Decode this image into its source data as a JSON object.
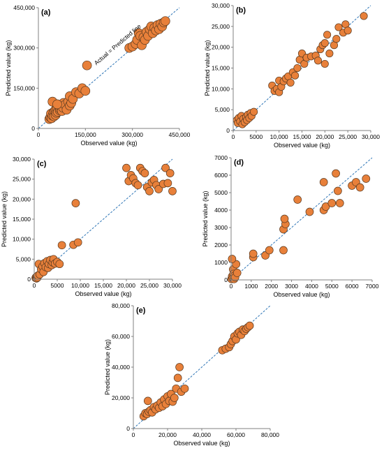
{
  "colors": {
    "point_fill": "#E8803A",
    "point_stroke": "#5A3A20",
    "identity_line": "#2E75B6",
    "axis": "#808080",
    "text": "#000000"
  },
  "chart_data": [
    {
      "id": "a",
      "type": "scatter",
      "panel_label": "(a)",
      "xlabel": "Observed value (kg)",
      "ylabel": "Predicted value (kg)",
      "xlim": [
        0,
        450000
      ],
      "ylim": [
        0,
        450000
      ],
      "xticks": [
        0,
        150000,
        300000,
        450000
      ],
      "yticks": [
        0,
        150000,
        300000,
        450000
      ],
      "xtick_labels": [
        "0",
        "150,000",
        "300,000",
        "450,000"
      ],
      "ytick_labels": [
        "0",
        "150,000",
        "300,000",
        "450,000"
      ],
      "grid": false,
      "reference_line": "Actual = Predicted line",
      "points": [
        [
          35000,
          35000
        ],
        [
          38000,
          42000
        ],
        [
          40000,
          55000
        ],
        [
          42000,
          38000
        ],
        [
          45000,
          48000
        ],
        [
          48000,
          60000
        ],
        [
          50000,
          45000
        ],
        [
          52000,
          65000
        ],
        [
          55000,
          50000
        ],
        [
          55000,
          70000
        ],
        [
          58000,
          58000
        ],
        [
          60000,
          75000
        ],
        [
          62000,
          62000
        ],
        [
          65000,
          85000
        ],
        [
          68000,
          68000
        ],
        [
          70000,
          72000
        ],
        [
          72000,
          80000
        ],
        [
          75000,
          65000
        ],
        [
          78000,
          78000
        ],
        [
          80000,
          95000
        ],
        [
          85000,
          88000
        ],
        [
          90000,
          70000
        ],
        [
          95000,
          100000
        ],
        [
          100000,
          85000
        ],
        [
          100000,
          120000
        ],
        [
          105000,
          95000
        ],
        [
          110000,
          110000
        ],
        [
          120000,
          135000
        ],
        [
          130000,
          130000
        ],
        [
          140000,
          150000
        ],
        [
          150000,
          140000
        ],
        [
          155000,
          235000
        ],
        [
          45000,
          100000
        ],
        [
          60000,
          90000
        ],
        [
          290000,
          300000
        ],
        [
          300000,
          305000
        ],
        [
          310000,
          315000
        ],
        [
          315000,
          330000
        ],
        [
          320000,
          355000
        ],
        [
          325000,
          345000
        ],
        [
          330000,
          310000
        ],
        [
          335000,
          340000
        ],
        [
          340000,
          330000
        ],
        [
          345000,
          360000
        ],
        [
          350000,
          345000
        ],
        [
          355000,
          370000
        ],
        [
          360000,
          380000
        ],
        [
          365000,
          355000
        ],
        [
          370000,
          375000
        ],
        [
          375000,
          365000
        ],
        [
          380000,
          385000
        ],
        [
          385000,
          370000
        ],
        [
          390000,
          390000
        ],
        [
          395000,
          380000
        ],
        [
          400000,
          395000
        ],
        [
          405000,
          400000
        ]
      ]
    },
    {
      "id": "b",
      "type": "scatter",
      "panel_label": "(b)",
      "xlabel": "Observed value (kg)",
      "ylabel": "Predicted value (kg)",
      "xlim": [
        0,
        30000
      ],
      "ylim": [
        0,
        30000
      ],
      "xticks": [
        0,
        5000,
        10000,
        15000,
        20000,
        25000,
        30000
      ],
      "yticks": [
        0,
        5000,
        10000,
        15000,
        20000,
        25000,
        30000
      ],
      "xtick_labels": [
        "0",
        "5000",
        "10,000",
        "15,000",
        "20,000",
        "25,000",
        "30,000"
      ],
      "ytick_labels": [
        "0",
        "5,000",
        "10,000",
        "15,000",
        "20,000",
        "25,000",
        "30,000"
      ],
      "grid": false,
      "points": [
        [
          800,
          2500
        ],
        [
          1000,
          1800
        ],
        [
          1200,
          3000
        ],
        [
          1500,
          2200
        ],
        [
          1800,
          3500
        ],
        [
          2000,
          1500
        ],
        [
          2200,
          2800
        ],
        [
          2500,
          2000
        ],
        [
          2800,
          3200
        ],
        [
          3000,
          2500
        ],
        [
          3200,
          3800
        ],
        [
          3500,
          3000
        ],
        [
          3800,
          4200
        ],
        [
          4000,
          3500
        ],
        [
          4500,
          4500
        ],
        [
          8500,
          10800
        ],
        [
          9000,
          9500
        ],
        [
          9500,
          10000
        ],
        [
          10000,
          9200
        ],
        [
          10000,
          12000
        ],
        [
          10500,
          10500
        ],
        [
          11000,
          11800
        ],
        [
          11500,
          12500
        ],
        [
          12000,
          13000
        ],
        [
          12500,
          11500
        ],
        [
          13000,
          14000
        ],
        [
          13500,
          13200
        ],
        [
          14000,
          15000
        ],
        [
          14500,
          17000
        ],
        [
          15000,
          18500
        ],
        [
          15500,
          16000
        ],
        [
          16000,
          17500
        ],
        [
          17000,
          17800
        ],
        [
          18000,
          18000
        ],
        [
          18500,
          16800
        ],
        [
          19000,
          19500
        ],
        [
          19500,
          20500
        ],
        [
          20000,
          21000
        ],
        [
          20000,
          16000
        ],
        [
          20500,
          23000
        ],
        [
          21000,
          18500
        ],
        [
          22000,
          20500
        ],
        [
          22500,
          22000
        ],
        [
          23000,
          24800
        ],
        [
          24000,
          23500
        ],
        [
          24500,
          25500
        ],
        [
          25000,
          24000
        ],
        [
          28500,
          27500
        ]
      ]
    },
    {
      "id": "c",
      "type": "scatter",
      "panel_label": "(c)",
      "xlabel": "Observed value (kg)",
      "ylabel": "Predicted value (kg)",
      "xlim": [
        0,
        30000
      ],
      "ylim": [
        0,
        30000
      ],
      "xticks": [
        0,
        5000,
        10000,
        15000,
        20000,
        25000,
        30000
      ],
      "yticks": [
        0,
        5000,
        10000,
        15000,
        20000,
        25000,
        30000
      ],
      "xtick_labels": [
        "0",
        "5000",
        "10,000",
        "15,000",
        "20,000",
        "25,000",
        "30,000"
      ],
      "ytick_labels": [
        "0",
        "5,000",
        "10,000",
        "15,000",
        "20,000",
        "25,000",
        "30,000"
      ],
      "grid": false,
      "points": [
        [
          300,
          300
        ],
        [
          400,
          500
        ],
        [
          500,
          200
        ],
        [
          600,
          700
        ],
        [
          700,
          400
        ],
        [
          800,
          900
        ],
        [
          1000,
          3800
        ],
        [
          1200,
          1200
        ],
        [
          1500,
          2500
        ],
        [
          1800,
          3200
        ],
        [
          2000,
          1800
        ],
        [
          2200,
          4000
        ],
        [
          2500,
          3000
        ],
        [
          2800,
          4500
        ],
        [
          3000,
          2800
        ],
        [
          3200,
          3800
        ],
        [
          3500,
          4800
        ],
        [
          3800,
          3500
        ],
        [
          4000,
          4200
        ],
        [
          4200,
          5000
        ],
        [
          4500,
          3900
        ],
        [
          5000,
          4300
        ],
        [
          5500,
          3800
        ],
        [
          6000,
          8500
        ],
        [
          8500,
          8600
        ],
        [
          9000,
          19000
        ],
        [
          9500,
          9200
        ],
        [
          20000,
          27800
        ],
        [
          20500,
          24500
        ],
        [
          21000,
          26000
        ],
        [
          21500,
          25200
        ],
        [
          22000,
          24000
        ],
        [
          22500,
          23500
        ],
        [
          23000,
          27800
        ],
        [
          23500,
          27000
        ],
        [
          24000,
          26500
        ],
        [
          24500,
          23000
        ],
        [
          25000,
          22000
        ],
        [
          25500,
          24200
        ],
        [
          26000,
          24800
        ],
        [
          26500,
          23500
        ],
        [
          27000,
          22500
        ],
        [
          28000,
          23800
        ],
        [
          28500,
          27800
        ],
        [
          29000,
          24000
        ],
        [
          29500,
          26500
        ],
        [
          30000,
          22000
        ]
      ]
    },
    {
      "id": "d",
      "type": "scatter",
      "panel_label": "(d)",
      "xlabel": "Observed value (kg)",
      "ylabel": "Predicted value (kg)",
      "xlim": [
        0,
        7000
      ],
      "ylim": [
        0,
        7000
      ],
      "xticks": [
        0,
        1000,
        2000,
        3000,
        4000,
        5000,
        6000,
        7000
      ],
      "yticks": [
        0,
        1000,
        2000,
        3000,
        4000,
        5000,
        6000,
        7000
      ],
      "xtick_labels": [
        "0",
        "1000",
        "2000",
        "3000",
        "4000",
        "5000",
        "6000",
        "7000"
      ],
      "ytick_labels": [
        "0",
        "1000",
        "2000",
        "3000",
        "4000",
        "5000",
        "6000",
        "7000"
      ],
      "grid": false,
      "points": [
        [
          20,
          50
        ],
        [
          50,
          200
        ],
        [
          80,
          100
        ],
        [
          100,
          600
        ],
        [
          120,
          350
        ],
        [
          150,
          50
        ],
        [
          180,
          250
        ],
        [
          200,
          150
        ],
        [
          250,
          900
        ],
        [
          300,
          400
        ],
        [
          50,
          1200
        ],
        [
          1100,
          1300
        ],
        [
          1100,
          1500
        ],
        [
          1700,
          1400
        ],
        [
          1900,
          1700
        ],
        [
          2600,
          1700
        ],
        [
          2600,
          2900
        ],
        [
          2700,
          3200
        ],
        [
          2650,
          3500
        ],
        [
          3300,
          4600
        ],
        [
          3900,
          3900
        ],
        [
          4600,
          4000
        ],
        [
          4700,
          4200
        ],
        [
          4600,
          5600
        ],
        [
          5000,
          4400
        ],
        [
          5200,
          6100
        ],
        [
          5300,
          5100
        ],
        [
          5400,
          4400
        ],
        [
          6000,
          5400
        ],
        [
          6200,
          5600
        ],
        [
          6400,
          5300
        ],
        [
          6700,
          5800
        ]
      ]
    },
    {
      "id": "e",
      "type": "scatter",
      "panel_label": "(e)",
      "xlabel": "Observed value (kg)",
      "ylabel": "Predicted value (kg)",
      "xlim": [
        0,
        80000
      ],
      "ylim": [
        0,
        80000
      ],
      "xticks": [
        0,
        20000,
        40000,
        60000,
        80000
      ],
      "yticks": [
        0,
        20000,
        40000,
        60000,
        80000
      ],
      "xtick_labels": [
        "0",
        "20,000",
        "40,000",
        "60,000",
        "80,000"
      ],
      "ytick_labels": [
        "0",
        "20,000",
        "40,000",
        "60,000",
        "80,000"
      ],
      "grid": false,
      "points": [
        [
          6000,
          8000
        ],
        [
          7000,
          10000
        ],
        [
          8000,
          9500
        ],
        [
          8500,
          18000
        ],
        [
          9000,
          11000
        ],
        [
          10000,
          12000
        ],
        [
          11000,
          10500
        ],
        [
          12000,
          14000
        ],
        [
          13000,
          12500
        ],
        [
          14000,
          15000
        ],
        [
          15000,
          13500
        ],
        [
          16000,
          17000
        ],
        [
          17000,
          14500
        ],
        [
          18000,
          19000
        ],
        [
          19000,
          16000
        ],
        [
          20000,
          21000
        ],
        [
          21000,
          18000
        ],
        [
          22000,
          22500
        ],
        [
          23000,
          17500
        ],
        [
          24000,
          20000
        ],
        [
          25000,
          26000
        ],
        [
          26000,
          33000
        ],
        [
          27000,
          40000
        ],
        [
          28000,
          24000
        ],
        [
          30000,
          26000
        ],
        [
          52000,
          51000
        ],
        [
          54000,
          52000
        ],
        [
          56000,
          53000
        ],
        [
          57000,
          55000
        ],
        [
          58000,
          57000
        ],
        [
          59000,
          60000
        ],
        [
          60000,
          58000
        ],
        [
          61000,
          62000
        ],
        [
          62000,
          63000
        ],
        [
          63000,
          61000
        ],
        [
          64000,
          64500
        ],
        [
          65000,
          63500
        ],
        [
          66000,
          65000
        ],
        [
          67000,
          66000
        ],
        [
          68000,
          67000
        ]
      ]
    }
  ]
}
